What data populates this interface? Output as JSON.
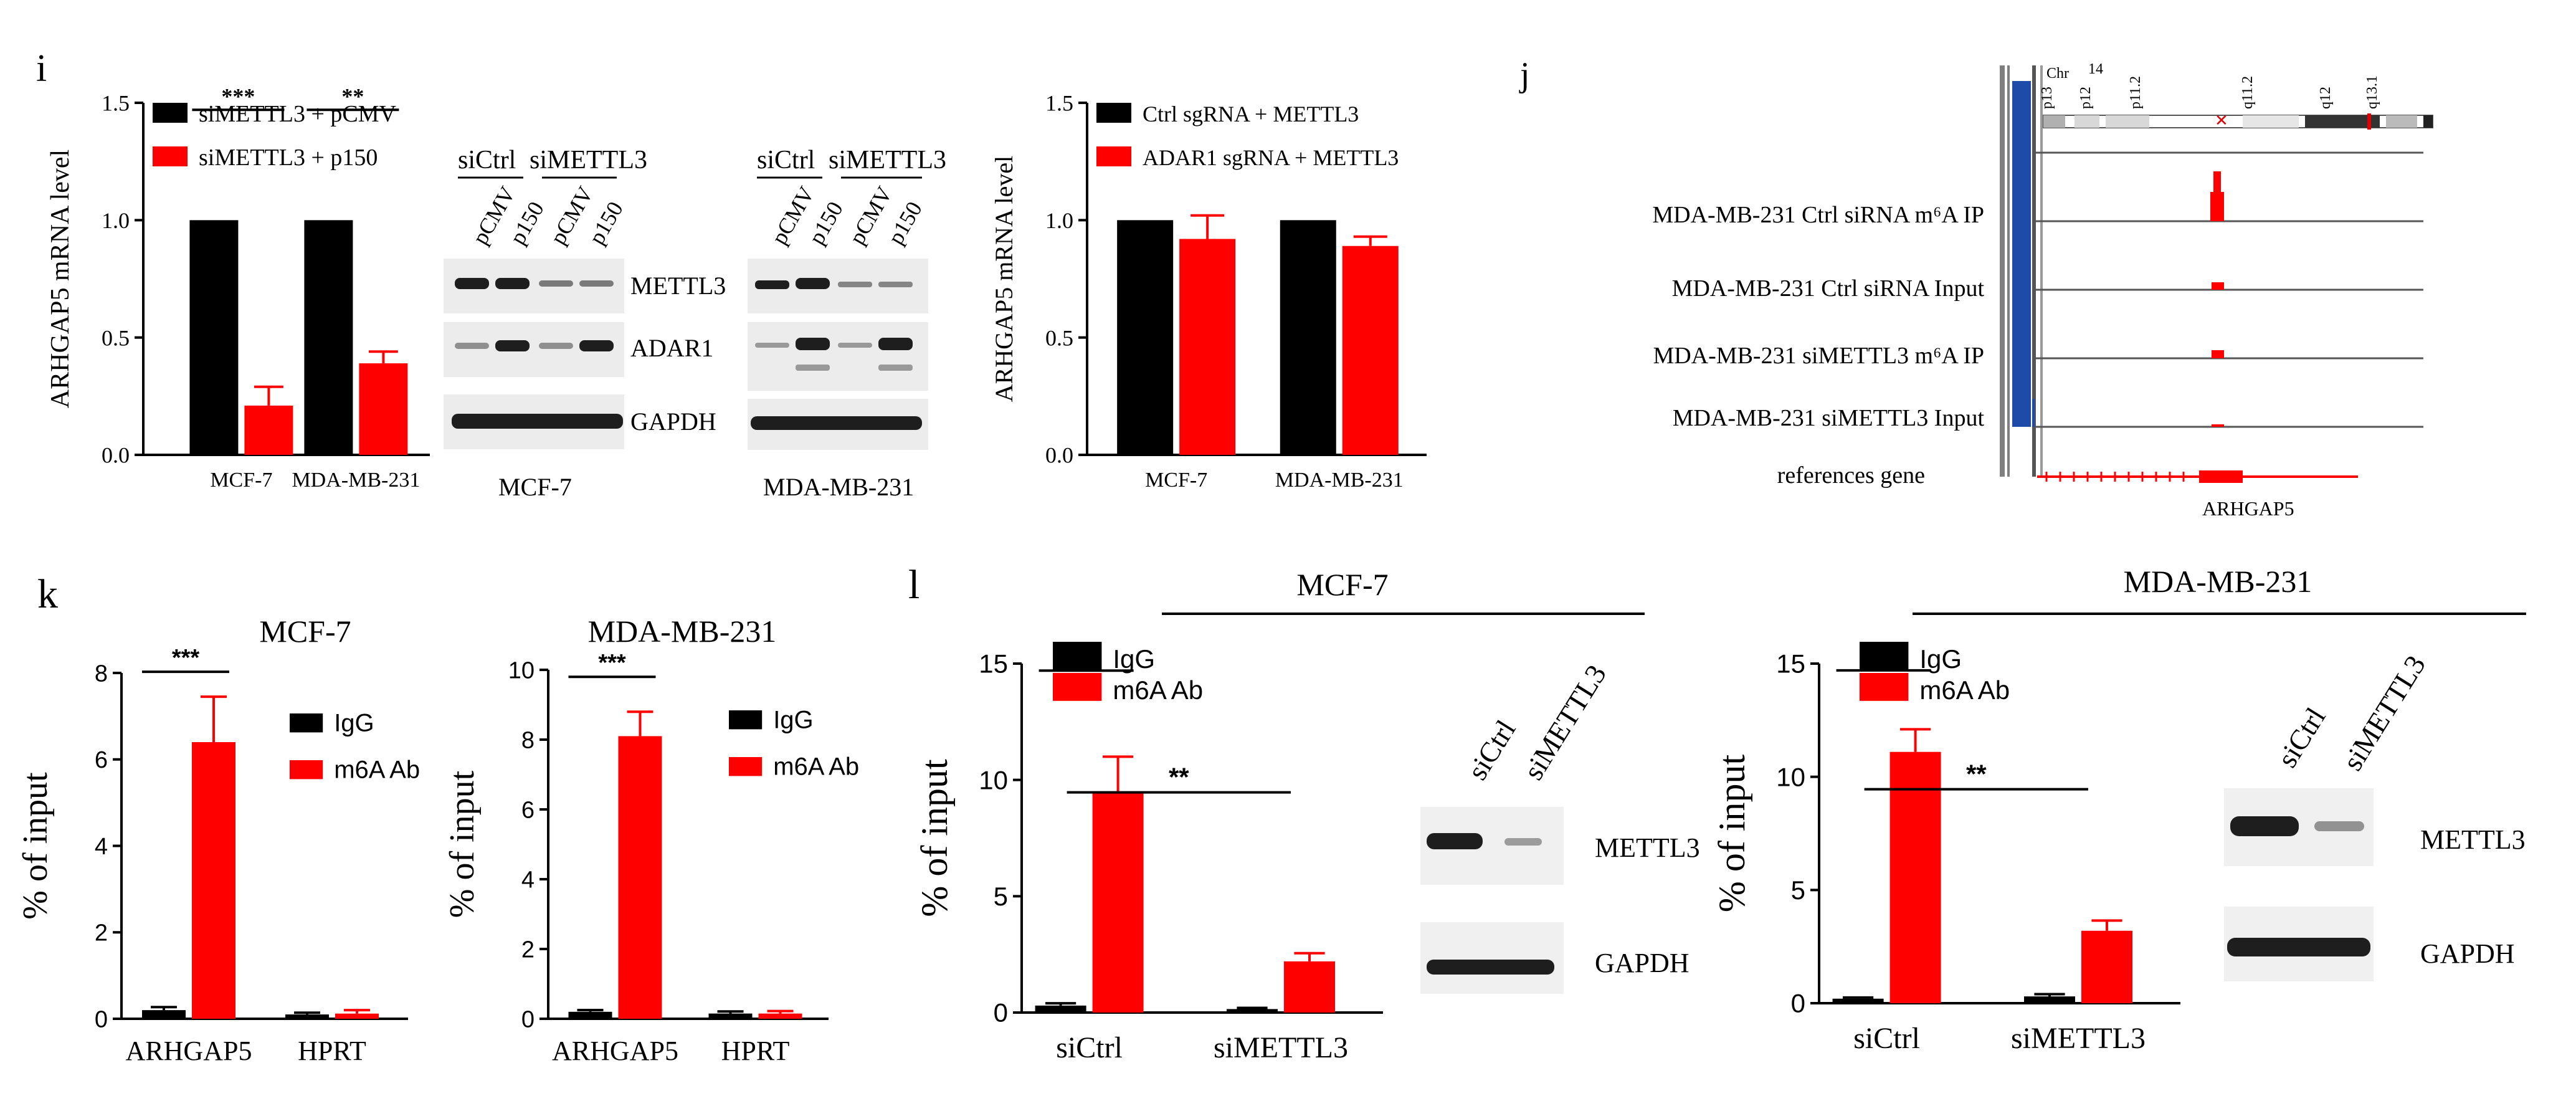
{
  "panel_letters": {
    "i": "i",
    "j": "j",
    "k": "k",
    "l": "l"
  },
  "blots": {
    "lanes_mcf7": [
      "pCMV",
      "p150",
      "pCMV",
      "p150"
    ],
    "lanes_mda": [
      "pCMV",
      "p150",
      "pCMV",
      "p150"
    ],
    "groups": [
      "siCtrl",
      "siMETTL3"
    ],
    "rows": [
      "METTL3",
      "ADAR1",
      "GAPDH"
    ],
    "mcf7_label": "MCF-7",
    "mda_label": "MDA-MB-231",
    "l_lanes": [
      "siCtrl",
      "siMETTL3"
    ],
    "l_rows": [
      "METTL3",
      "GAPDH"
    ]
  },
  "track": {
    "chromosome_labels": [
      "p13",
      "Chr",
      "14",
      "p12",
      "p11.2",
      "q11.2",
      "q12",
      "q13.1"
    ],
    "track_labels": [
      "MDA-MB-231 Ctrl siRNA m⁶A IP",
      "MDA-MB-231 Ctrl siRNA Input",
      "MDA-MB-231 siMETTL3  m⁶A IP",
      "MDA-MB-231 siMETTL3  Input",
      "references gene"
    ],
    "gene": "ARHGAP5"
  },
  "panel_titles": {
    "l_mcf7": "MCF-7",
    "l_mda": "MDA-MB-231"
  },
  "chart_data": [
    {
      "id": "i-left",
      "type": "bar",
      "categories": [
        "MCF-7",
        "MDA-MB-231"
      ],
      "series": [
        {
          "name": "siMETTL3 + pCMV",
          "color": "#000000",
          "values": [
            1.0,
            1.0
          ],
          "errors": [
            0,
            0
          ]
        },
        {
          "name": "siMETTL3 + p150",
          "color": "#ff0000",
          "values": [
            0.21,
            0.39
          ],
          "errors": [
            0.08,
            0.05
          ]
        }
      ],
      "ylabel": "ARHGAP5 mRNA level",
      "ylim": [
        0,
        1.5
      ],
      "yticks": [
        0,
        0.5,
        1.0,
        1.5
      ],
      "significance": [
        "***",
        "**"
      ],
      "legend": "top-left"
    },
    {
      "id": "i-right",
      "type": "bar",
      "categories": [
        "MCF-7",
        "MDA-MB-231"
      ],
      "series": [
        {
          "name": "Ctrl sgRNA + METTL3",
          "color": "#000000",
          "values": [
            1.0,
            1.0
          ],
          "errors": [
            0,
            0
          ]
        },
        {
          "name": "ADAR1 sgRNA + METTL3",
          "color": "#ff0000",
          "values": [
            0.92,
            0.89
          ],
          "errors": [
            0.1,
            0.04
          ]
        }
      ],
      "ylabel": "ARHGAP5 mRNA level",
      "ylim": [
        0,
        1.5
      ],
      "yticks": [
        0,
        0.5,
        1.0,
        1.5
      ],
      "legend": "top-left"
    },
    {
      "id": "k-left",
      "type": "bar",
      "title": "MCF-7",
      "categories": [
        "ARHGAP5",
        "HPRT"
      ],
      "series": [
        {
          "name": "IgG",
          "color": "#000000",
          "values": [
            0.2,
            0.1
          ],
          "errors": [
            0.07,
            0.04
          ]
        },
        {
          "name": "m6A Ab",
          "color": "#ff0000",
          "values": [
            6.4,
            0.12
          ],
          "errors": [
            1.05,
            0.08
          ]
        }
      ],
      "ylabel": "% of input",
      "ylim": [
        0,
        8
      ],
      "yticks": [
        0,
        2,
        4,
        6,
        8
      ],
      "significance": [
        "***"
      ],
      "legend": "right"
    },
    {
      "id": "k-right",
      "type": "bar",
      "title": "MDA-MB-231",
      "categories": [
        "ARHGAP5",
        "HPRT"
      ],
      "series": [
        {
          "name": "IgG",
          "color": "#000000",
          "values": [
            0.2,
            0.15
          ],
          "errors": [
            0.05,
            0.06
          ]
        },
        {
          "name": "m6A Ab",
          "color": "#ff0000",
          "values": [
            8.1,
            0.15
          ],
          "errors": [
            0.7,
            0.07
          ]
        }
      ],
      "ylabel": "% of input",
      "ylim": [
        0,
        10
      ],
      "yticks": [
        0,
        2,
        4,
        6,
        8,
        10
      ],
      "significance": [
        "***"
      ],
      "legend": "right"
    },
    {
      "id": "l-left",
      "type": "bar",
      "categories": [
        "siCtrl",
        "siMETTL3"
      ],
      "series": [
        {
          "name": "IgG",
          "color": "#000000",
          "values": [
            0.3,
            0.15
          ],
          "errors": [
            0.1,
            0.05
          ]
        },
        {
          "name": "m6A Ab",
          "color": "#ff0000",
          "values": [
            9.5,
            2.2
          ],
          "errors": [
            1.5,
            0.35
          ]
        }
      ],
      "ylabel": "% of input",
      "ylim": [
        0,
        15
      ],
      "yticks": [
        0,
        5,
        10,
        15
      ],
      "significance": [
        "***",
        "**"
      ],
      "legend": "top-left"
    },
    {
      "id": "l-right",
      "type": "bar",
      "categories": [
        "siCtrl",
        "siMETTL3"
      ],
      "series": [
        {
          "name": "IgG",
          "color": "#000000",
          "values": [
            0.2,
            0.3
          ],
          "errors": [
            0.05,
            0.1
          ]
        },
        {
          "name": "m6A Ab",
          "color": "#ff0000",
          "values": [
            11.1,
            3.2
          ],
          "errors": [
            1.0,
            0.45
          ]
        }
      ],
      "ylabel": "% of input",
      "ylim": [
        0,
        15
      ],
      "yticks": [
        0,
        5,
        10,
        15
      ],
      "significance": [
        "***",
        "**"
      ],
      "legend": "top-left"
    }
  ]
}
